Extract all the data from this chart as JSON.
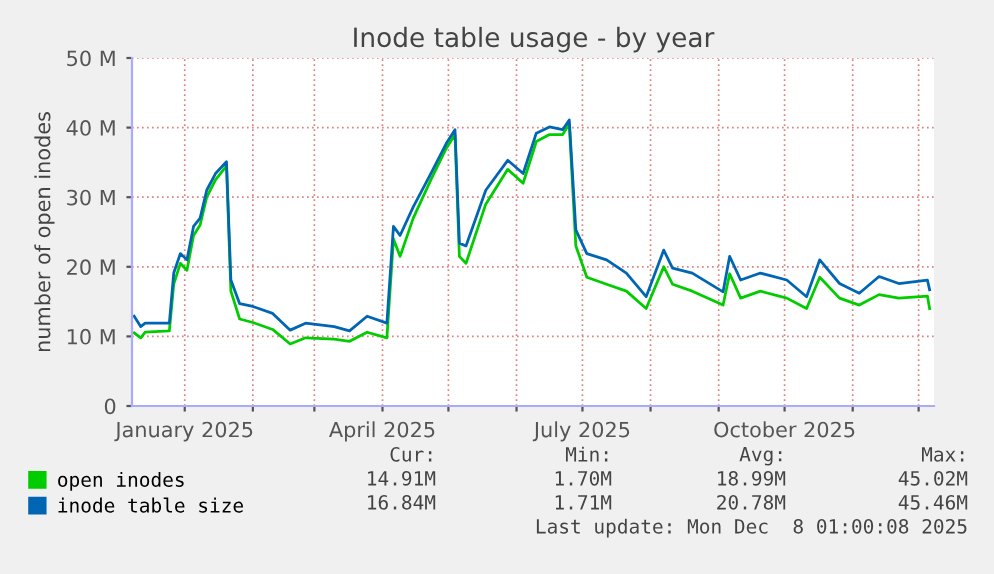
{
  "chart_data": {
    "type": "line",
    "title": "Inode table usage - by year",
    "ylabel": "number of open inodes",
    "x": [
      "2024-12-09",
      "2024-12-12",
      "2024-12-14",
      "2024-12-25",
      "2024-12-27",
      "2024-12-30",
      "2025-01-02",
      "2025-01-05",
      "2025-01-08",
      "2025-01-11",
      "2025-01-15",
      "2025-01-20",
      "2025-01-22",
      "2025-01-26",
      "2025-02-01",
      "2025-02-10",
      "2025-02-18",
      "2025-02-25",
      "2025-03-10",
      "2025-03-17",
      "2025-03-25",
      "2025-04-03",
      "2025-04-06",
      "2025-04-09",
      "2025-04-15",
      "2025-04-23",
      "2025-04-30",
      "2025-05-04",
      "2025-05-06",
      "2025-05-09",
      "2025-05-18",
      "2025-05-28",
      "2025-06-04",
      "2025-06-10",
      "2025-06-16",
      "2025-06-22",
      "2025-06-25",
      "2025-06-28",
      "2025-07-03",
      "2025-07-12",
      "2025-07-21",
      "2025-07-30",
      "2025-08-07",
      "2025-08-11",
      "2025-08-20",
      "2025-09-03",
      "2025-09-06",
      "2025-09-11",
      "2025-09-20",
      "2025-10-02",
      "2025-10-11",
      "2025-10-17",
      "2025-10-26",
      "2025-11-04",
      "2025-11-13",
      "2025-11-22",
      "2025-12-05",
      "2025-12-06"
    ],
    "series": [
      {
        "name": "open inodes",
        "color": "#00cc00",
        "values": [
          10.5,
          9.8,
          10.6,
          10.8,
          17.5,
          20.5,
          19.5,
          24.5,
          26.0,
          30.0,
          32.5,
          34.5,
          16.5,
          12.5,
          12.0,
          11.0,
          8.9,
          9.8,
          9.6,
          9.3,
          10.6,
          9.8,
          24.0,
          21.5,
          27.0,
          32.5,
          37.0,
          39.0,
          21.5,
          20.5,
          29.0,
          34.0,
          32.0,
          38.0,
          39.0,
          39.0,
          40.5,
          23.0,
          18.5,
          17.5,
          16.5,
          14.0,
          20.0,
          17.5,
          16.5,
          14.5,
          19.0,
          15.5,
          16.5,
          15.5,
          14.0,
          18.5,
          15.5,
          14.5,
          16.0,
          15.5,
          15.8,
          14.0
        ]
      },
      {
        "name": "inode table size",
        "color": "#0066b3",
        "values": [
          12.9,
          11.4,
          11.9,
          11.9,
          19.1,
          21.9,
          21.0,
          25.8,
          27.0,
          31.0,
          33.4,
          35.1,
          18.1,
          14.7,
          14.3,
          13.3,
          10.9,
          11.9,
          11.4,
          10.8,
          12.9,
          11.9,
          25.8,
          24.5,
          28.6,
          33.4,
          37.7,
          39.7,
          23.4,
          23.0,
          31.0,
          35.3,
          33.4,
          39.2,
          40.1,
          39.7,
          41.1,
          25.3,
          21.9,
          21.0,
          19.1,
          15.7,
          22.4,
          19.8,
          19.1,
          16.4,
          21.5,
          18.1,
          19.1,
          18.1,
          15.7,
          21.0,
          17.6,
          16.2,
          18.6,
          17.6,
          18.1,
          16.7
        ]
      }
    ],
    "xlim": [
      "2024-12-08",
      "2025-12-08"
    ],
    "xticks": [
      {
        "value": "2025-01-01",
        "label": "January 2025"
      },
      {
        "value": "2025-02-01",
        "label": null
      },
      {
        "value": "2025-03-01",
        "label": null
      },
      {
        "value": "2025-04-01",
        "label": "April 2025"
      },
      {
        "value": "2025-05-01",
        "label": null
      },
      {
        "value": "2025-06-01",
        "label": null
      },
      {
        "value": "2025-07-01",
        "label": "July 2025"
      },
      {
        "value": "2025-08-01",
        "label": null
      },
      {
        "value": "2025-09-01",
        "label": null
      },
      {
        "value": "2025-10-01",
        "label": "October 2025"
      },
      {
        "value": "2025-11-01",
        "label": null
      },
      {
        "value": "2025-12-01",
        "label": null
      }
    ],
    "ylim": [
      0,
      50
    ],
    "yticks": [
      0,
      {
        "value": 10,
        "label": "10 M"
      },
      {
        "value": 20,
        "label": "20 M"
      },
      {
        "value": 30,
        "label": "30 M"
      },
      {
        "value": 40,
        "label": "40 M"
      },
      {
        "value": 50,
        "label": "50 M"
      }
    ],
    "grid": true,
    "legend": "bottom",
    "annotations": [
      "Cur:",
      "Min:",
      "Avg:",
      "Max:",
      "14.91M",
      "1.70M",
      "18.99M",
      "45.02M",
      "16.84M",
      "1.71M",
      "20.78M",
      "45.46M",
      "Last update: Mon Dec  8 01:00:08 2025"
    ]
  }
}
